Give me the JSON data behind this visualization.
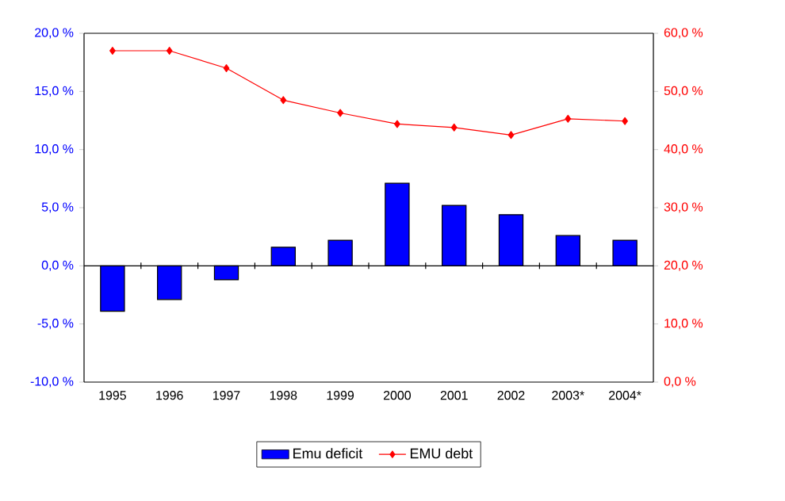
{
  "chart_data": {
    "type": "bar",
    "categories": [
      "1995",
      "1996",
      "1997",
      "1998",
      "1999",
      "2000",
      "2001",
      "2002",
      "2003*",
      "2004*"
    ],
    "series": [
      {
        "name": "Emu deficit",
        "type": "bar",
        "color": "#0000ff",
        "values": [
          -3.9,
          -2.9,
          -1.2,
          1.6,
          2.2,
          7.1,
          5.2,
          4.4,
          2.6,
          2.2
        ]
      },
      {
        "name": "EMU debt",
        "type": "line",
        "axis": "y2",
        "color": "#ff0000",
        "marker": "diamond",
        "values": [
          57.0,
          57.0,
          54.0,
          48.5,
          46.3,
          44.4,
          43.8,
          42.5,
          45.3,
          44.9
        ]
      }
    ],
    "ylim": [
      -10,
      20
    ],
    "yticks": [
      {
        "value": -10,
        "label": "-10,0 %"
      },
      {
        "value": -5,
        "label": "-5,0 %"
      },
      {
        "value": 0,
        "label": "0,0 %"
      },
      {
        "value": 5,
        "label": "5,0 %"
      },
      {
        "value": 10,
        "label": "10,0 %"
      },
      {
        "value": 15,
        "label": "15,0 %"
      },
      {
        "value": 20,
        "label": "20,0 %"
      }
    ],
    "y2lim": [
      0,
      60
    ],
    "y2ticks": [
      {
        "value": 0,
        "label": "0,0 %"
      },
      {
        "value": 10,
        "label": "10,0 %"
      },
      {
        "value": 20,
        "label": "20,0 %"
      },
      {
        "value": 30,
        "label": "30,0 %"
      },
      {
        "value": 40,
        "label": "40,0 %"
      },
      {
        "value": 50,
        "label": "50,0 %"
      },
      {
        "value": 60,
        "label": "60,0 %"
      }
    ],
    "legend": "bottom"
  }
}
